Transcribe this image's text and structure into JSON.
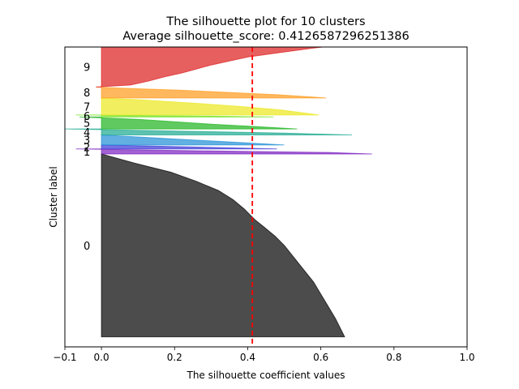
{
  "chart_data": {
    "type": "area",
    "title": "The silhouette plot for 10 clusters",
    "subtitle": "Average silhouette_score: 0.4126587296251386",
    "xlabel": "The silhouette coefficient values",
    "ylabel": "Cluster label",
    "xlim": [
      -0.1,
      1.0
    ],
    "xticks": [
      -0.1,
      0.0,
      0.2,
      0.4,
      0.6,
      0.8,
      1.0
    ],
    "xtick_labels": [
      "−0.1",
      "0.0",
      "0.2",
      "0.4",
      "0.6",
      "0.8",
      "1.0"
    ],
    "average_score": 0.4126587296251386,
    "grid": false,
    "clusters": [
      {
        "label": "0",
        "color": "#000000",
        "y_start": 10,
        "y_end": 193,
        "profile": [
          [
            0.0,
            0.665
          ],
          [
            0.04,
            0.655
          ],
          [
            0.1,
            0.64
          ],
          [
            0.15,
            0.625
          ],
          [
            0.2,
            0.61
          ],
          [
            0.25,
            0.595
          ],
          [
            0.3,
            0.58
          ],
          [
            0.35,
            0.56
          ],
          [
            0.4,
            0.54
          ],
          [
            0.45,
            0.52
          ],
          [
            0.5,
            0.5
          ],
          [
            0.55,
            0.475
          ],
          [
            0.6,
            0.445
          ],
          [
            0.64,
            0.42
          ],
          [
            0.66,
            0.41
          ],
          [
            0.7,
            0.39
          ],
          [
            0.75,
            0.36
          ],
          [
            0.8,
            0.32
          ],
          [
            0.85,
            0.26
          ],
          [
            0.9,
            0.19
          ],
          [
            0.95,
            0.09
          ],
          [
            1.0,
            0.0
          ]
        ]
      },
      {
        "label": "1",
        "color": "#7a1fbf",
        "y_start": 193,
        "y_end": 198,
        "profile": [
          [
            0.0,
            0.74
          ],
          [
            0.3,
            0.62
          ],
          [
            0.6,
            0.3
          ],
          [
            1.0,
            -0.07
          ]
        ]
      },
      {
        "label": "2",
        "color": "#3a33d6",
        "y_start": 198,
        "y_end": 202,
        "profile": [
          [
            0.0,
            0.48
          ],
          [
            0.4,
            0.3
          ],
          [
            0.8,
            0.1
          ],
          [
            1.0,
            0.0
          ]
        ]
      },
      {
        "label": "3",
        "color": "#1f8fd6",
        "y_start": 202,
        "y_end": 212,
        "profile": [
          [
            0.0,
            0.5
          ],
          [
            0.2,
            0.4
          ],
          [
            0.4,
            0.3
          ],
          [
            0.6,
            0.2
          ],
          [
            0.8,
            0.1
          ],
          [
            1.0,
            0.0
          ]
        ]
      },
      {
        "label": "4",
        "color": "#19a88e",
        "y_start": 212,
        "y_end": 218,
        "profile": [
          [
            0.0,
            0.685
          ],
          [
            0.3,
            0.5
          ],
          [
            0.6,
            0.25
          ],
          [
            1.0,
            -0.1
          ]
        ]
      },
      {
        "label": "5",
        "color": "#1db31d",
        "y_start": 218,
        "y_end": 230,
        "profile": [
          [
            0.0,
            0.535
          ],
          [
            0.2,
            0.42
          ],
          [
            0.4,
            0.3
          ],
          [
            0.6,
            0.2
          ],
          [
            0.8,
            0.1
          ],
          [
            1.0,
            -0.06
          ]
        ]
      },
      {
        "label": "6",
        "color": "#6fe21a",
        "y_start": 230,
        "y_end": 232,
        "profile": [
          [
            0.0,
            0.47
          ],
          [
            0.5,
            0.25
          ],
          [
            1.0,
            -0.07
          ]
        ]
      },
      {
        "label": "7",
        "color": "#ebe81c",
        "y_start": 232,
        "y_end": 249,
        "profile": [
          [
            0.0,
            0.595
          ],
          [
            0.1,
            0.56
          ],
          [
            0.3,
            0.49
          ],
          [
            0.5,
            0.38
          ],
          [
            0.7,
            0.25
          ],
          [
            0.9,
            0.1
          ],
          [
            1.0,
            0.0
          ]
        ]
      },
      {
        "label": "8",
        "color": "#ff9a1a",
        "y_start": 249,
        "y_end": 260,
        "profile": [
          [
            0.0,
            0.615
          ],
          [
            0.1,
            0.57
          ],
          [
            0.3,
            0.48
          ],
          [
            0.5,
            0.35
          ],
          [
            0.7,
            0.22
          ],
          [
            0.9,
            0.05
          ],
          [
            1.0,
            -0.015
          ]
        ]
      },
      {
        "label": "9",
        "color": "#dd1c1c",
        "y_start": 260,
        "y_end": 300,
        "profile": [
          [
            0.0,
            -0.015
          ],
          [
            0.05,
            0.08
          ],
          [
            0.15,
            0.13
          ],
          [
            0.25,
            0.17
          ],
          [
            0.35,
            0.22
          ],
          [
            0.45,
            0.26
          ],
          [
            0.55,
            0.3
          ],
          [
            0.65,
            0.35
          ],
          [
            0.75,
            0.4
          ],
          [
            0.85,
            0.48
          ],
          [
            0.95,
            0.56
          ],
          [
            1.0,
            0.605
          ]
        ]
      }
    ]
  }
}
